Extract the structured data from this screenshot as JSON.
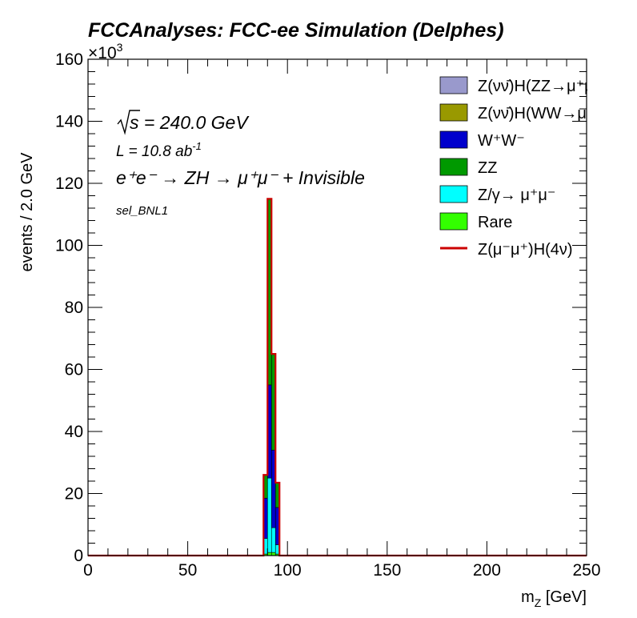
{
  "chart_data": {
    "type": "bar",
    "stacked": true,
    "title": "FCCAnalyses: FCC-ee Simulation (Delphes)",
    "xlabel": "m_Z [GeV]",
    "xlabel_main": "m",
    "xlabel_sub": "Z",
    "xlabel_rest": " [GeV]",
    "ylabel": "events / 2.0 GeV",
    "y_exponent": "×10^3",
    "y_exponent_base": "×10",
    "y_exponent_power": "3",
    "xlim": [
      0,
      250
    ],
    "ylim": [
      0,
      160
    ],
    "y_unit_scale": 1000,
    "bin_width": 2.0,
    "x_ticks": [
      "0",
      "50",
      "100",
      "150",
      "200",
      "250"
    ],
    "y_ticks": [
      "0",
      "20",
      "40",
      "60",
      "80",
      "100",
      "120",
      "140",
      "160"
    ],
    "annotations": {
      "sqrt_s": "√s = 240.0 GeV",
      "sqrt_s_rest": " = 240.0 GeV",
      "lumi": "L = 10.8 ab",
      "lumi_power": "-1",
      "process": "e⁺e⁻ → ZH → μ⁺μ⁻ + Invisible",
      "selection": "sel_BNL1"
    },
    "bins_x": [
      88,
      90,
      92,
      94
    ],
    "series": [
      {
        "name": "Rare",
        "color": "#33ff00",
        "values": [
          0.5,
          1.0,
          1.0,
          0.5
        ]
      },
      {
        "name": "Z/γ→ μ⁺μ⁻",
        "color": "#00ffff",
        "values": [
          5.0,
          24.0,
          8.0,
          3.0
        ]
      },
      {
        "name": "W⁺W⁻",
        "color": "#0000cc",
        "values": [
          13.0,
          30.0,
          25.0,
          12.0
        ]
      },
      {
        "name": "ZZ",
        "color": "#009900",
        "values": [
          7.5,
          60.0,
          31.0,
          8.0
        ]
      },
      {
        "name": "Z(νν̄)H(WW→μ⁺νμ⁻ν̄)",
        "color": "#999900",
        "values": [
          0.0,
          0.0,
          0.0,
          0.0
        ]
      },
      {
        "name": "Z(νν̄)H(ZZ→μ⁺μ⁻νν̄)",
        "color": "#9999cc",
        "values": [
          0.0,
          0.0,
          0.0,
          0.0
        ]
      }
    ],
    "signal": {
      "name": "Z(μ⁻μ⁺)H(4ν)",
      "color": "#cc0000",
      "values": [
        0.0,
        0.0,
        0.0,
        0.0
      ]
    },
    "legend_entries": [
      {
        "label": "Z(νν̄)H(ZZ→μ⁺μ⁻νν̄)",
        "color": "#9999cc",
        "kind": "box"
      },
      {
        "label": "Z(νν̄)H(WW→μ⁺νμ⁻ν̄)",
        "color": "#999900",
        "kind": "box"
      },
      {
        "label": "W⁺W⁻",
        "color": "#0000cc",
        "kind": "box"
      },
      {
        "label": "ZZ",
        "color": "#009900",
        "kind": "box"
      },
      {
        "label": "Z/γ→ μ⁺μ⁻",
        "color": "#00ffff",
        "kind": "box"
      },
      {
        "label": "Rare",
        "color": "#33ff00",
        "kind": "box"
      },
      {
        "label": "Z(μ⁻μ⁺)H(4ν)",
        "color": "#cc0000",
        "kind": "line"
      }
    ],
    "legend_position": "top-right",
    "grid": false
  }
}
